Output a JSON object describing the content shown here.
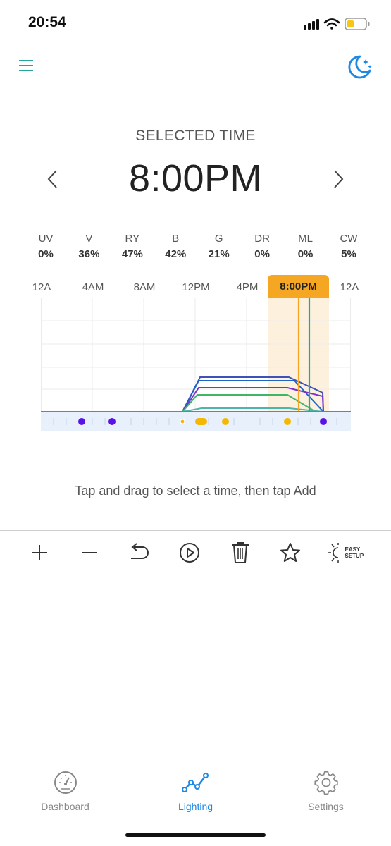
{
  "status_bar": {
    "time": "20:54"
  },
  "selected": {
    "label": "SELECTED TIME",
    "time": "8:00PM"
  },
  "channels": [
    {
      "name": "UV",
      "value": "0%"
    },
    {
      "name": "V",
      "value": "36%"
    },
    {
      "name": "RY",
      "value": "47%"
    },
    {
      "name": "B",
      "value": "42%"
    },
    {
      "name": "G",
      "value": "21%"
    },
    {
      "name": "DR",
      "value": "0%"
    },
    {
      "name": "ML",
      "value": "0%"
    },
    {
      "name": "CW",
      "value": "5%"
    }
  ],
  "timeline": {
    "labels": [
      "12A",
      "4AM",
      "8AM",
      "12PM",
      "4PM",
      "12A"
    ],
    "selected_label": "8:00PM"
  },
  "hint": "Tap and drag to select a time, then tap Add",
  "toolbar": {
    "easy_setup_line1": "EASY",
    "easy_setup_line2": "SETUP"
  },
  "tabs": [
    {
      "label": "Dashboard",
      "icon": "gauge-icon"
    },
    {
      "label": "Lighting",
      "icon": "chart-line-icon"
    },
    {
      "label": "Settings",
      "icon": "gear-icon"
    }
  ],
  "colors": {
    "accent": "#1e88e5",
    "selected": "#f5a623",
    "teal": "#26a69a"
  }
}
